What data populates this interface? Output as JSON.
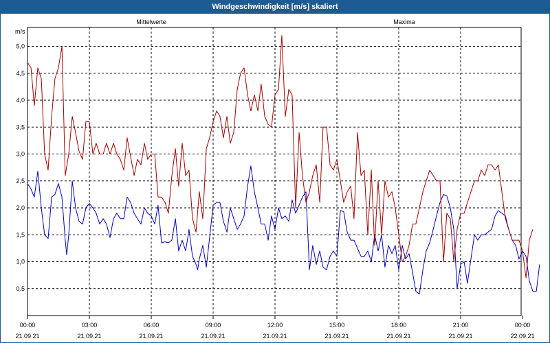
{
  "window": {
    "title": "Windgeschwindigkeit [m/s] skaliert"
  },
  "colors": {
    "titlebar": "#1d5b93",
    "mean": "#0000c0",
    "max": "#a00000",
    "grid": "#000000"
  },
  "chart_data": {
    "type": "line",
    "title": "Windgeschwindigkeit [m/s] skaliert",
    "ylabel": "m/s",
    "ylim": [
      0.0,
      5.5
    ],
    "yticks": [
      "0.5",
      "1,0",
      "1,5",
      "2,0",
      "2,5",
      "3,0",
      "3,5",
      "4,0",
      "4,5",
      "5,0"
    ],
    "xlim_hours": [
      0,
      24
    ],
    "x_tick_times": [
      "00:00",
      "03:00",
      "06:00",
      "09:00",
      "12:00",
      "15:00",
      "18:00",
      "21:00",
      "00:00"
    ],
    "x_tick_dates": [
      "21.09.21",
      "21.09.21",
      "21.09.21",
      "21.09.21",
      "21.09.21",
      "21.09.21",
      "21.09.21",
      "21.09.21",
      "22.09.21"
    ],
    "grid": true,
    "series": [
      {
        "name": "Mittelwerte",
        "color": "#0000c0",
        "points": [
          [
            0.0,
            2.45
          ],
          [
            0.17,
            2.35
          ],
          [
            0.33,
            2.2
          ],
          [
            0.5,
            2.68
          ],
          [
            0.67,
            2.0
          ],
          [
            0.83,
            1.5
          ],
          [
            1.0,
            1.43
          ],
          [
            1.17,
            2.2
          ],
          [
            1.33,
            2.25
          ],
          [
            1.5,
            2.45
          ],
          [
            1.67,
            2.2
          ],
          [
            1.83,
            1.4
          ],
          [
            1.9,
            1.13
          ],
          [
            2.0,
            1.5
          ],
          [
            2.17,
            2.5
          ],
          [
            2.33,
            2.0
          ],
          [
            2.5,
            1.75
          ],
          [
            2.67,
            1.7
          ],
          [
            2.83,
            2.0
          ],
          [
            3.0,
            2.08
          ],
          [
            3.17,
            2.0
          ],
          [
            3.33,
            1.9
          ],
          [
            3.5,
            1.7
          ],
          [
            3.67,
            1.8
          ],
          [
            3.83,
            1.7
          ],
          [
            4.0,
            1.45
          ],
          [
            4.17,
            1.8
          ],
          [
            4.33,
            1.9
          ],
          [
            4.5,
            1.8
          ],
          [
            4.67,
            1.8
          ],
          [
            4.83,
            2.2
          ],
          [
            5.0,
            2.1
          ],
          [
            5.17,
            1.9
          ],
          [
            5.33,
            1.8
          ],
          [
            5.5,
            1.7
          ],
          [
            5.67,
            2.0
          ],
          [
            5.83,
            1.9
          ],
          [
            6.0,
            1.85
          ],
          [
            6.17,
            1.7
          ],
          [
            6.33,
            2.05
          ],
          [
            6.5,
            1.35
          ],
          [
            6.67,
            1.37
          ],
          [
            6.83,
            1.35
          ],
          [
            7.0,
            1.4
          ],
          [
            7.17,
            1.8
          ],
          [
            7.33,
            1.2
          ],
          [
            7.5,
            1.4
          ],
          [
            7.67,
            1.2
          ],
          [
            7.83,
            1.6
          ],
          [
            8.0,
            1.1
          ],
          [
            8.17,
            0.95
          ],
          [
            8.25,
            0.85
          ],
          [
            8.33,
            1.05
          ],
          [
            8.5,
            1.3
          ],
          [
            8.67,
            0.9
          ],
          [
            8.83,
            1.45
          ],
          [
            9.0,
            2.05
          ],
          [
            9.17,
            2.1
          ],
          [
            9.33,
            2.1
          ],
          [
            9.5,
            1.75
          ],
          [
            9.67,
            1.55
          ],
          [
            9.83,
            2.0
          ],
          [
            10.0,
            1.8
          ],
          [
            10.17,
            1.6
          ],
          [
            10.33,
            1.7
          ],
          [
            10.5,
            1.85
          ],
          [
            10.67,
            2.4
          ],
          [
            10.83,
            2.78
          ],
          [
            11.0,
            2.3
          ],
          [
            11.17,
            2.0
          ],
          [
            11.33,
            1.7
          ],
          [
            11.5,
            1.7
          ],
          [
            11.67,
            1.4
          ],
          [
            11.83,
            1.85
          ],
          [
            12.0,
            1.6
          ],
          [
            12.17,
            2.0
          ],
          [
            12.33,
            1.8
          ],
          [
            12.5,
            1.85
          ],
          [
            12.67,
            1.75
          ],
          [
            12.83,
            2.15
          ],
          [
            13.0,
            1.9
          ],
          [
            13.17,
            2.05
          ],
          [
            13.33,
            2.2
          ],
          [
            13.5,
            2.3
          ],
          [
            13.67,
            0.85
          ],
          [
            13.83,
            1.3
          ],
          [
            14.0,
            0.95
          ],
          [
            14.17,
            1.2
          ],
          [
            14.33,
            0.9
          ],
          [
            14.5,
            0.85
          ],
          [
            14.67,
            1.1
          ],
          [
            14.83,
            1.2
          ],
          [
            15.0,
            1.1
          ],
          [
            15.17,
            1.95
          ],
          [
            15.33,
            1.93
          ],
          [
            15.5,
            1.55
          ],
          [
            15.67,
            1.4
          ],
          [
            15.83,
            1.4
          ],
          [
            16.0,
            1.25
          ],
          [
            16.17,
            1.1
          ],
          [
            16.33,
            1.1
          ],
          [
            16.5,
            1.2
          ],
          [
            16.67,
            1.0
          ],
          [
            16.83,
            1.5
          ],
          [
            17.0,
            1.2
          ],
          [
            17.17,
            1.5
          ],
          [
            17.33,
            0.9
          ],
          [
            17.5,
            1.3
          ],
          [
            17.67,
            1.15
          ],
          [
            17.83,
            1.3
          ],
          [
            18.0,
            0.85
          ],
          [
            18.17,
            1.3
          ],
          [
            18.33,
            1.05
          ],
          [
            18.5,
            1.15
          ],
          [
            18.67,
            0.8
          ],
          [
            18.83,
            0.45
          ],
          [
            19.0,
            0.4
          ],
          [
            19.17,
            0.85
          ],
          [
            19.33,
            1.2
          ],
          [
            19.5,
            1.35
          ],
          [
            19.67,
            1.6
          ],
          [
            19.83,
            1.85
          ],
          [
            20.0,
            2.1
          ],
          [
            20.17,
            2.25
          ],
          [
            20.33,
            2.22
          ],
          [
            20.5,
            2.0
          ],
          [
            20.67,
            1.6
          ],
          [
            20.83,
            0.5
          ],
          [
            21.0,
            0.95
          ],
          [
            21.17,
            1.0
          ],
          [
            21.33,
            0.6
          ],
          [
            21.5,
            1.05
          ],
          [
            21.67,
            1.5
          ],
          [
            21.83,
            1.4
          ],
          [
            22.0,
            1.5
          ],
          [
            22.17,
            1.5
          ],
          [
            22.33,
            1.55
          ],
          [
            22.5,
            1.6
          ],
          [
            22.67,
            1.85
          ],
          [
            22.83,
            1.95
          ],
          [
            23.0,
            1.9
          ],
          [
            23.17,
            1.85
          ],
          [
            23.33,
            1.6
          ],
          [
            23.5,
            1.4
          ],
          [
            23.67,
            1.3
          ],
          [
            23.83,
            1.05
          ],
          [
            24.0,
            1.2
          ],
          [
            24.17,
            1.1
          ],
          [
            24.33,
            0.65
          ],
          [
            24.5,
            0.45
          ],
          [
            24.67,
            0.45
          ],
          [
            24.83,
            0.95
          ]
        ]
      },
      {
        "name": "Maxima",
        "color": "#a00000",
        "points": [
          [
            0.0,
            4.7
          ],
          [
            0.17,
            4.6
          ],
          [
            0.33,
            3.9
          ],
          [
            0.5,
            4.6
          ],
          [
            0.67,
            4.4
          ],
          [
            0.83,
            3.0
          ],
          [
            1.0,
            2.7
          ],
          [
            1.17,
            3.7
          ],
          [
            1.33,
            4.4
          ],
          [
            1.5,
            4.6
          ],
          [
            1.67,
            5.0
          ],
          [
            1.83,
            2.6
          ],
          [
            2.0,
            3.0
          ],
          [
            2.17,
            3.7
          ],
          [
            2.33,
            3.4
          ],
          [
            2.5,
            3.05
          ],
          [
            2.67,
            2.9
          ],
          [
            2.83,
            3.6
          ],
          [
            3.0,
            3.6
          ],
          [
            3.17,
            3.0
          ],
          [
            3.33,
            3.2
          ],
          [
            3.5,
            3.0
          ],
          [
            3.67,
            3.0
          ],
          [
            3.83,
            3.2
          ],
          [
            4.0,
            3.0
          ],
          [
            4.17,
            3.2
          ],
          [
            4.33,
            3.0
          ],
          [
            4.5,
            2.9
          ],
          [
            4.67,
            2.7
          ],
          [
            4.83,
            3.3
          ],
          [
            5.0,
            2.95
          ],
          [
            5.17,
            2.6
          ],
          [
            5.33,
            2.9
          ],
          [
            5.5,
            2.8
          ],
          [
            5.67,
            3.2
          ],
          [
            5.83,
            2.9
          ],
          [
            6.0,
            3.0
          ],
          [
            6.17,
            3.0
          ],
          [
            6.33,
            2.2
          ],
          [
            6.5,
            2.2
          ],
          [
            6.67,
            2.1
          ],
          [
            6.83,
            1.9
          ],
          [
            7.0,
            2.6
          ],
          [
            7.17,
            3.1
          ],
          [
            7.33,
            2.4
          ],
          [
            7.5,
            3.2
          ],
          [
            7.67,
            2.6
          ],
          [
            7.83,
            2.7
          ],
          [
            8.0,
            1.8
          ],
          [
            8.17,
            1.55
          ],
          [
            8.33,
            2.3
          ],
          [
            8.5,
            1.8
          ],
          [
            8.67,
            3.1
          ],
          [
            8.83,
            3.3
          ],
          [
            9.0,
            3.6
          ],
          [
            9.17,
            3.8
          ],
          [
            9.33,
            3.7
          ],
          [
            9.5,
            3.3
          ],
          [
            9.67,
            3.7
          ],
          [
            9.83,
            3.2
          ],
          [
            10.0,
            3.4
          ],
          [
            10.17,
            4.2
          ],
          [
            10.33,
            4.5
          ],
          [
            10.5,
            4.6
          ],
          [
            10.67,
            4.1
          ],
          [
            10.83,
            3.8
          ],
          [
            11.0,
            4.1
          ],
          [
            11.17,
            3.8
          ],
          [
            11.33,
            4.3
          ],
          [
            11.5,
            3.7
          ],
          [
            11.67,
            3.55
          ],
          [
            11.83,
            3.5
          ],
          [
            12.0,
            4.1
          ],
          [
            12.17,
            4.2
          ],
          [
            12.33,
            5.2
          ],
          [
            12.5,
            3.7
          ],
          [
            12.67,
            4.2
          ],
          [
            12.83,
            4.1
          ],
          [
            13.0,
            2.0
          ],
          [
            13.17,
            3.4
          ],
          [
            13.33,
            2.6
          ],
          [
            13.5,
            2.1
          ],
          [
            13.67,
            2.3
          ],
          [
            13.83,
            2.6
          ],
          [
            14.0,
            2.8
          ],
          [
            14.17,
            2.1
          ],
          [
            14.33,
            3.5
          ],
          [
            14.5,
            3.5
          ],
          [
            14.67,
            2.8
          ],
          [
            14.83,
            2.7
          ],
          [
            15.0,
            2.9
          ],
          [
            15.17,
            2.5
          ],
          [
            15.33,
            2.1
          ],
          [
            15.5,
            2.3
          ],
          [
            15.67,
            2.4
          ],
          [
            15.83,
            1.8
          ],
          [
            16.0,
            3.4
          ],
          [
            16.17,
            2.6
          ],
          [
            16.33,
            2.7
          ],
          [
            16.5,
            1.5
          ],
          [
            16.67,
            2.7
          ],
          [
            16.83,
            1.3
          ],
          [
            17.0,
            2.5
          ],
          [
            17.17,
            1.5
          ],
          [
            17.33,
            2.5
          ],
          [
            17.5,
            2.2
          ],
          [
            17.67,
            2.3
          ],
          [
            17.83,
            2.0
          ],
          [
            18.0,
            1.5
          ],
          [
            18.17,
            1.0
          ],
          [
            18.33,
            1.1
          ],
          [
            18.5,
            1.3
          ],
          [
            18.67,
            1.7
          ],
          [
            18.83,
            1.7
          ],
          [
            19.0,
            2.0
          ],
          [
            19.17,
            2.3
          ],
          [
            19.33,
            2.5
          ],
          [
            19.5,
            2.7
          ],
          [
            19.67,
            2.6
          ],
          [
            19.83,
            2.5
          ],
          [
            20.0,
            2.5
          ],
          [
            20.17,
            1.0
          ],
          [
            20.33,
            1.9
          ],
          [
            20.5,
            1.8
          ],
          [
            20.67,
            1.0
          ],
          [
            20.83,
            1.6
          ],
          [
            21.0,
            1.9
          ],
          [
            21.17,
            1.9
          ],
          [
            21.33,
            2.1
          ],
          [
            21.5,
            2.3
          ],
          [
            21.67,
            2.5
          ],
          [
            21.83,
            2.5
          ],
          [
            22.0,
            2.7
          ],
          [
            22.17,
            2.6
          ],
          [
            22.33,
            2.8
          ],
          [
            22.5,
            2.8
          ],
          [
            22.67,
            2.7
          ],
          [
            22.83,
            2.8
          ],
          [
            23.0,
            2.3
          ],
          [
            23.17,
            1.8
          ],
          [
            23.33,
            1.6
          ],
          [
            23.5,
            1.4
          ],
          [
            23.67,
            1.4
          ],
          [
            23.83,
            1.4
          ],
          [
            24.0,
            1.2
          ],
          [
            24.17,
            0.7
          ],
          [
            24.33,
            1.4
          ],
          [
            24.5,
            1.6
          ]
        ]
      }
    ]
  }
}
